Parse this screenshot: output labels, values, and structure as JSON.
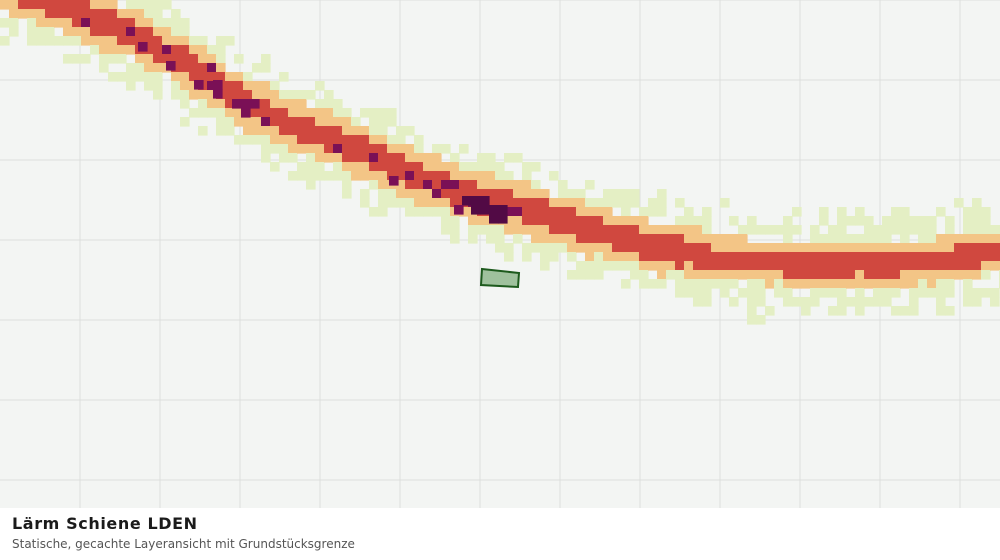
{
  "caption": {
    "title": "Lärm Schiene LDEN",
    "subtitle": "Statische, gecachte Layeransicht mit Grundstücksgrenze"
  },
  "map": {
    "background_color": "#f3f5f3",
    "grid_color": "#dcdedc",
    "noise_classes": [
      {
        "key": "low",
        "color": "#e4efc4"
      },
      {
        "key": "medium",
        "color": "#f3c586"
      },
      {
        "key": "high",
        "color": "#d0483f"
      },
      {
        "key": "very_high",
        "color": "#7a1056"
      },
      {
        "key": "extreme",
        "color": "#520a45"
      }
    ],
    "parcel": {
      "fill": "#9fc19d",
      "stroke": "#1d5a1d"
    }
  }
}
